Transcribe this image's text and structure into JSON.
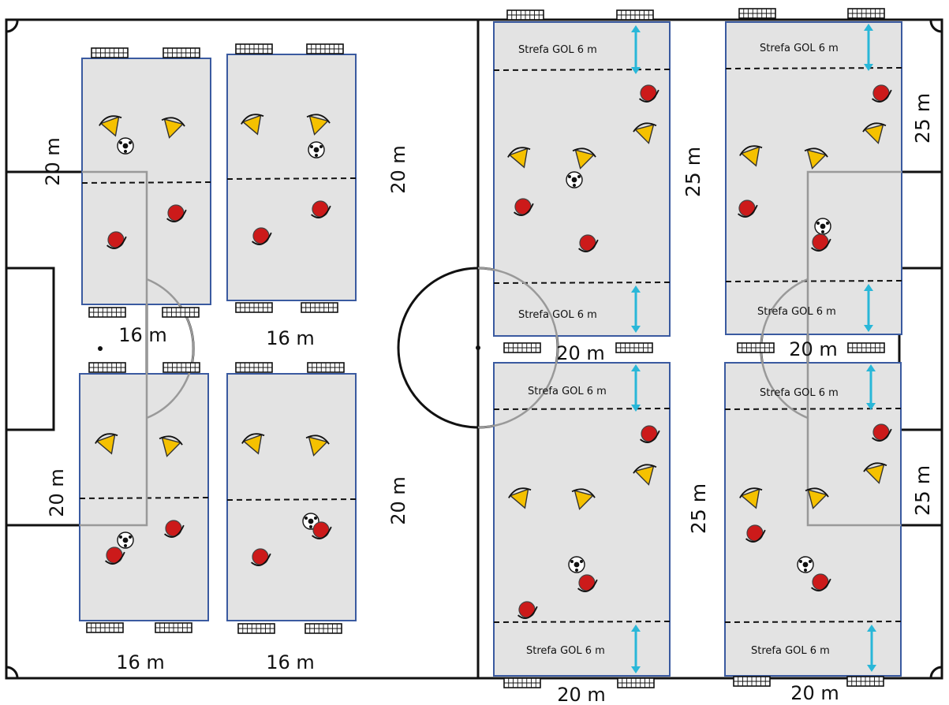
{
  "labels": {
    "len16": "16 m",
    "len20": "20 m",
    "len25": "25 m",
    "zone": "Strefa GOL 6 m"
  },
  "colors": {
    "field_line": "#111111",
    "pitch_fill": "#e3e3e3",
    "pitch_border": "#3a5aa0",
    "zone_arrow": "#29b7d8",
    "player_red": "#cc1a1a",
    "player_yellow": "#f5c100",
    "penalty_area": "#999999"
  },
  "pitches": [
    {
      "id": "small-top-left",
      "type": "small",
      "red_players": 2,
      "yellow_players": 2,
      "balls": 1
    },
    {
      "id": "small-top-right",
      "type": "small",
      "red_players": 2,
      "yellow_players": 2,
      "balls": 1
    },
    {
      "id": "small-bottom-left",
      "type": "small",
      "red_players": 2,
      "yellow_players": 2,
      "balls": 1
    },
    {
      "id": "small-bottom-right",
      "type": "small",
      "red_players": 2,
      "yellow_players": 2,
      "balls": 1
    },
    {
      "id": "big-top-left",
      "type": "large",
      "red_players": 3,
      "yellow_players": 3,
      "balls": 1
    },
    {
      "id": "big-top-right",
      "type": "large",
      "red_players": 3,
      "yellow_players": 3,
      "balls": 1
    },
    {
      "id": "big-bottom-left",
      "type": "large",
      "red_players": 3,
      "yellow_players": 3,
      "balls": 1
    },
    {
      "id": "big-bottom-right",
      "type": "large",
      "red_players": 3,
      "yellow_players": 3,
      "balls": 1
    }
  ]
}
